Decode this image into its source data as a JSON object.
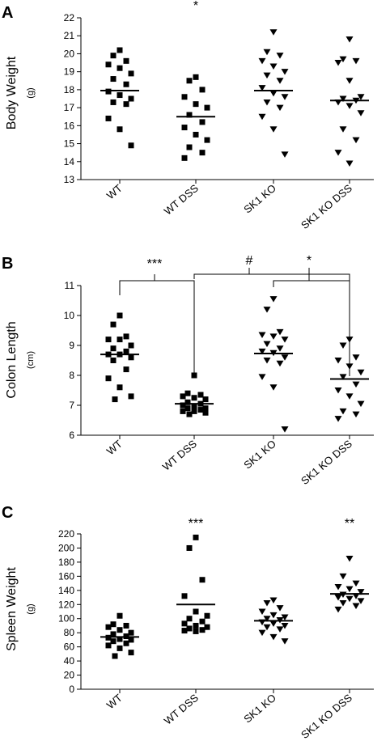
{
  "chart_data": [
    {
      "type": "scatter",
      "panel": "A",
      "ylabel": "Body Weight",
      "yunit": "(g)",
      "ylim": [
        13,
        22
      ],
      "yticks": [
        13,
        14,
        15,
        16,
        17,
        18,
        19,
        20,
        21,
        22
      ],
      "categories": [
        "WT",
        "WT DSS",
        "SK1 KO",
        "SK1 KO DSS"
      ],
      "markers": [
        "square",
        "square",
        "triangle-down",
        "triangle-down"
      ],
      "groups": [
        {
          "values": [
            20.2,
            19.9,
            19.6,
            19.4,
            19.2,
            18.9,
            18.6,
            18.3,
            17.9,
            17.7,
            17.5,
            17.3,
            17.2,
            16.4,
            15.8,
            14.9
          ],
          "mean": 17.95
        },
        {
          "values": [
            18.7,
            18.5,
            18.0,
            17.6,
            17.2,
            17.0,
            16.6,
            16.2,
            15.9,
            15.5,
            15.2,
            14.8,
            14.5,
            14.2
          ],
          "mean": 16.5
        },
        {
          "values": [
            21.2,
            20.1,
            19.9,
            19.6,
            19.3,
            19.0,
            18.8,
            18.5,
            18.1,
            17.8,
            17.6,
            17.3,
            17.0,
            16.5,
            15.8,
            14.4
          ],
          "mean": 17.95
        },
        {
          "values": [
            20.8,
            19.7,
            19.6,
            19.5,
            18.5,
            17.6,
            17.5,
            17.4,
            17.3,
            17.1,
            16.7,
            15.8,
            15.2,
            14.5,
            13.9
          ],
          "mean": 17.4
        }
      ],
      "significance": [
        {
          "group": 1,
          "label": "*"
        }
      ],
      "brackets": []
    },
    {
      "type": "scatter",
      "panel": "B",
      "ylabel": "Colon Length",
      "yunit": "(cm)",
      "ylim": [
        6,
        11
      ],
      "yticks": [
        6,
        7,
        8,
        9,
        10,
        11
      ],
      "categories": [
        "WT",
        "WT DSS",
        "SK1 KO",
        "SK1 KO DSS"
      ],
      "markers": [
        "square",
        "square",
        "triangle-down",
        "triangle-down"
      ],
      "groups": [
        {
          "values": [
            10.0,
            9.7,
            9.3,
            9.2,
            9.2,
            9.0,
            8.9,
            8.8,
            8.7,
            8.7,
            8.6,
            8.5,
            8.2,
            7.9,
            7.6,
            7.3,
            7.2
          ],
          "mean": 8.7
        },
        {
          "values": [
            8.0,
            7.4,
            7.35,
            7.3,
            7.25,
            7.2,
            7.1,
            7.05,
            7.0,
            6.95,
            6.9,
            6.9,
            6.85,
            6.8,
            6.8,
            6.75,
            6.7
          ],
          "mean": 7.05
        },
        {
          "values": [
            10.55,
            10.2,
            9.45,
            9.35,
            9.3,
            9.2,
            9.05,
            8.9,
            8.8,
            8.75,
            8.6,
            8.5,
            8.4,
            7.95,
            7.6,
            6.2
          ],
          "mean": 8.73
        },
        {
          "values": [
            9.2,
            9.0,
            8.6,
            8.5,
            8.3,
            8.1,
            7.95,
            7.7,
            7.5,
            7.3,
            7.05,
            6.8,
            6.7,
            6.55
          ],
          "mean": 7.88
        }
      ],
      "significance": [],
      "brackets": [
        {
          "label": "***",
          "from": 0,
          "to": 1,
          "level": 11.1
        },
        {
          "label": "#",
          "from": 1,
          "to": 3,
          "level": 11.25
        },
        {
          "label": "*",
          "from": 2,
          "to": 3,
          "level": 11.1
        }
      ]
    },
    {
      "type": "scatter",
      "panel": "C",
      "ylabel": "Spleen Weight",
      "yunit": "(g)",
      "ylim": [
        0,
        220
      ],
      "yticks": [
        0,
        20,
        40,
        60,
        80,
        100,
        120,
        140,
        160,
        180,
        200,
        220
      ],
      "categories": [
        "WT",
        "WT DSS",
        "SK1 KO",
        "SK1 KO DSS"
      ],
      "markers": [
        "square",
        "square",
        "triangle-down",
        "triangle-down"
      ],
      "groups": [
        {
          "values": [
            104,
            92,
            90,
            88,
            84,
            80,
            78,
            75,
            73,
            71,
            70,
            68,
            65,
            62,
            58,
            52,
            47
          ],
          "mean": 74
        },
        {
          "values": [
            215,
            200,
            155,
            132,
            110,
            104,
            100,
            96,
            93,
            90,
            88,
            86,
            84,
            83,
            82
          ],
          "mean": 120
        },
        {
          "values": [
            126,
            122,
            115,
            110,
            105,
            102,
            100,
            98,
            95,
            93,
            90,
            88,
            85,
            80,
            74,
            68
          ],
          "mean": 97
        },
        {
          "values": [
            185,
            160,
            150,
            145,
            142,
            138,
            134,
            132,
            130,
            128,
            125,
            122,
            118,
            113
          ],
          "mean": 135
        }
      ],
      "significance": [
        {
          "group": 1,
          "label": "***"
        },
        {
          "group": 3,
          "label": "**"
        }
      ],
      "brackets": []
    }
  ]
}
